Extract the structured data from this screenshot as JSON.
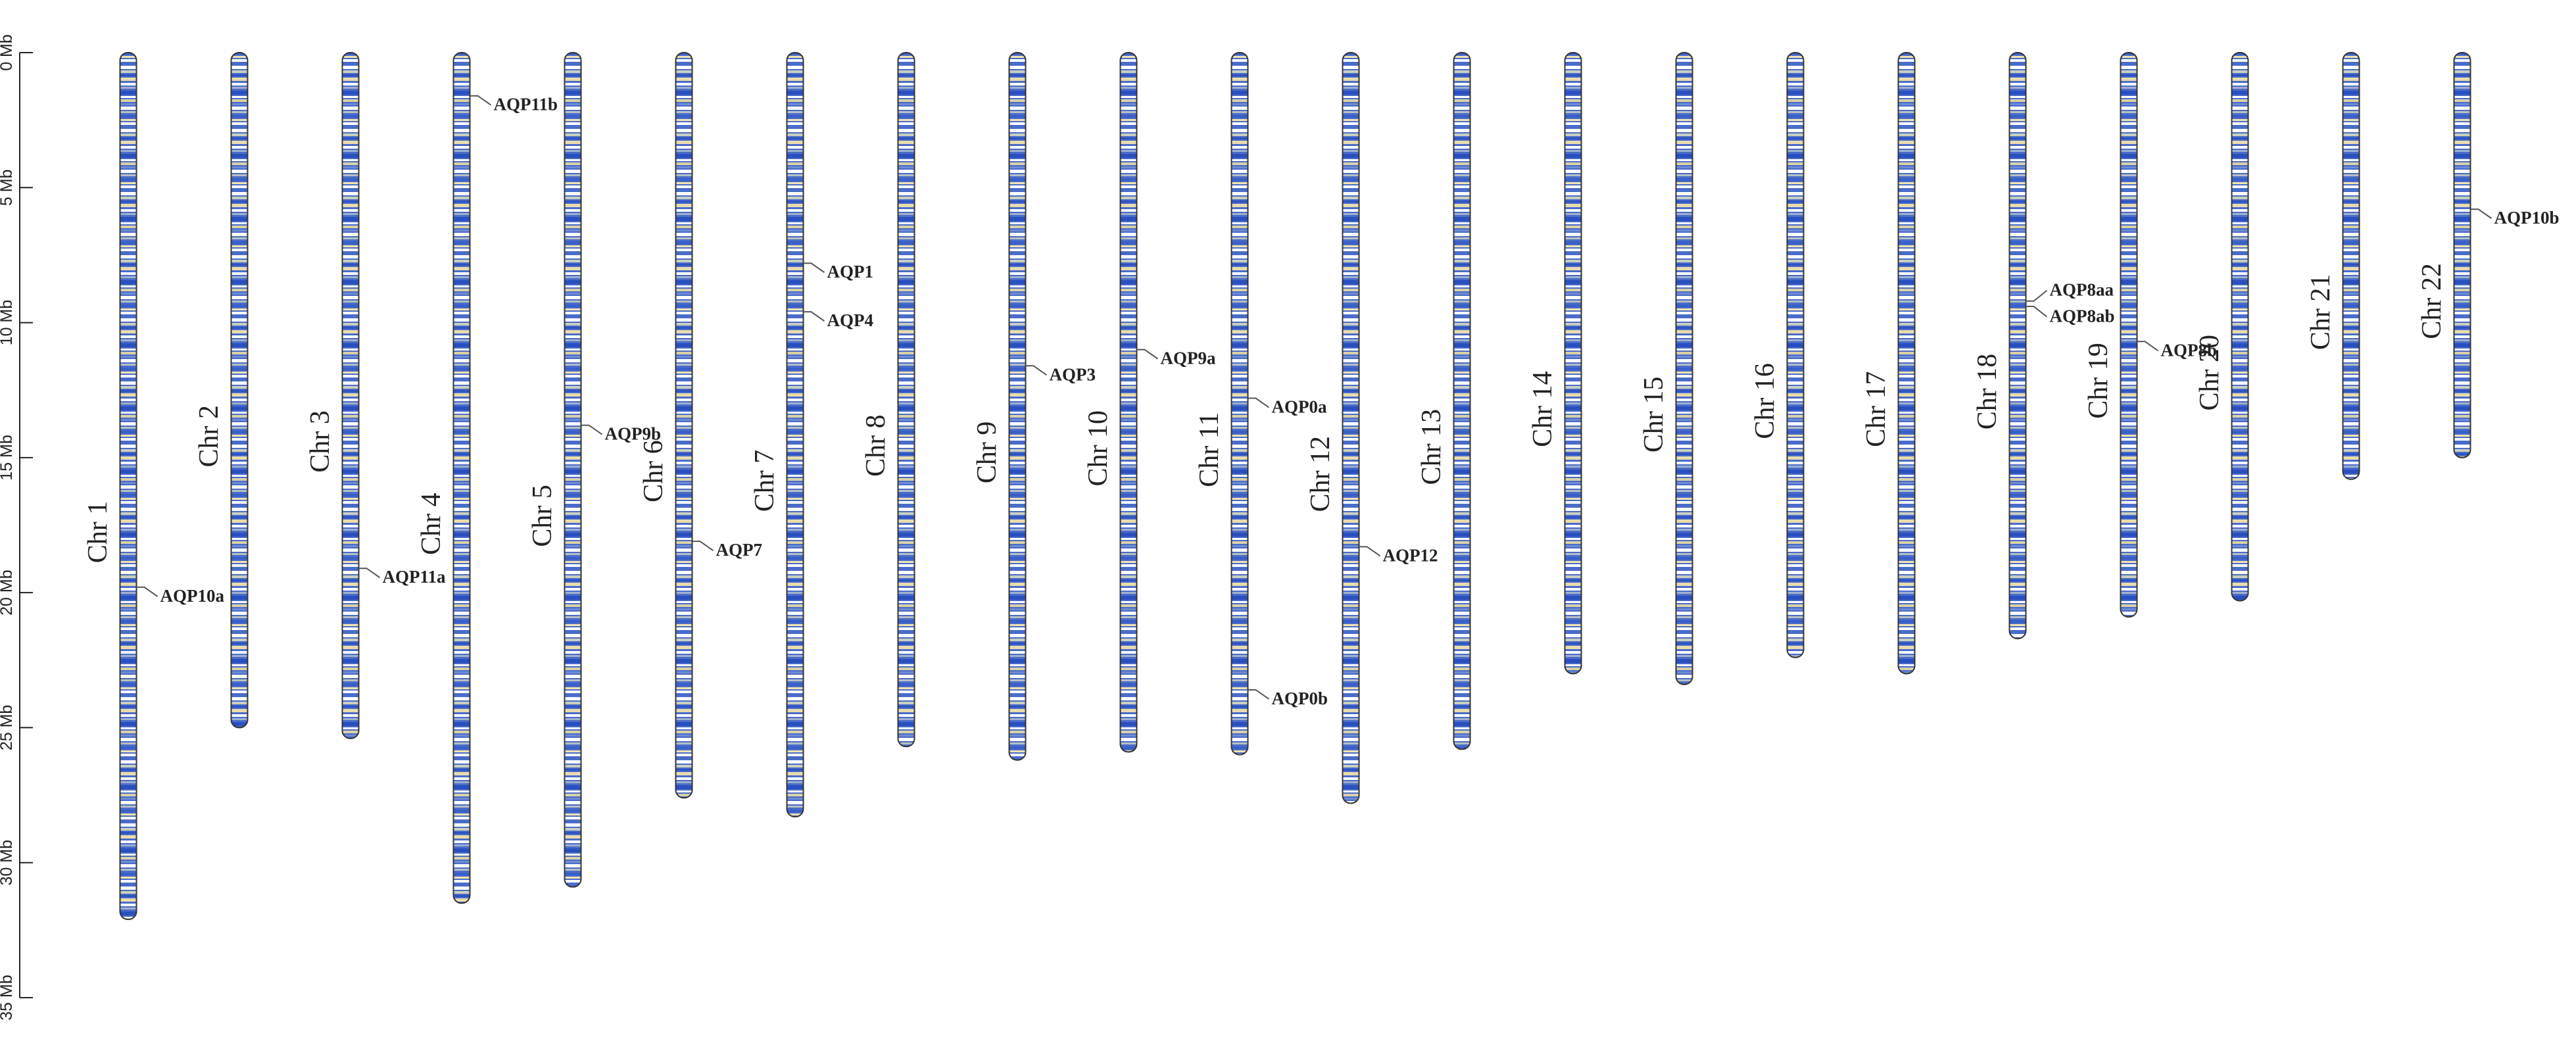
{
  "chart_data": {
    "type": "ideogram",
    "ylim": [
      0,
      35
    ],
    "yticks": [
      {
        "value": 0,
        "label": "0 Mb"
      },
      {
        "value": 5,
        "label": "5 Mb"
      },
      {
        "value": 10,
        "label": "10 Mb"
      },
      {
        "value": 15,
        "label": "15 Mb"
      },
      {
        "value": 20,
        "label": "20 Mb"
      },
      {
        "value": 25,
        "label": "25 Mb"
      },
      {
        "value": 30,
        "label": "30 Mb"
      },
      {
        "value": 35,
        "label": "35 Mb"
      }
    ],
    "chromosomes": [
      {
        "name": "Chr 1",
        "length": 32.1,
        "genes": [
          {
            "name": "AQP10a",
            "position": 19.8
          }
        ]
      },
      {
        "name": "Chr 2",
        "length": 25.0,
        "genes": []
      },
      {
        "name": "Chr 3",
        "length": 25.4,
        "genes": [
          {
            "name": "AQP11a",
            "position": 19.1
          }
        ]
      },
      {
        "name": "Chr 4",
        "length": 31.5,
        "genes": [
          {
            "name": "AQP11b",
            "position": 1.6
          }
        ]
      },
      {
        "name": "Chr 5",
        "length": 30.9,
        "genes": [
          {
            "name": "AQP9b",
            "position": 13.8
          }
        ]
      },
      {
        "name": "Chr 6",
        "length": 27.6,
        "genes": [
          {
            "name": "AQP7",
            "position": 18.1
          }
        ]
      },
      {
        "name": "Chr 7",
        "length": 28.3,
        "genes": [
          {
            "name": "AQP1",
            "position": 7.8
          },
          {
            "name": "AQP4",
            "position": 9.6
          }
        ]
      },
      {
        "name": "Chr 8",
        "length": 25.7,
        "genes": []
      },
      {
        "name": "Chr 9",
        "length": 26.2,
        "genes": [
          {
            "name": "AQP3",
            "position": 11.6
          }
        ]
      },
      {
        "name": "Chr 10",
        "length": 25.9,
        "genes": [
          {
            "name": "AQP9a",
            "position": 11.0
          }
        ]
      },
      {
        "name": "Chr 11",
        "length": 26.0,
        "genes": [
          {
            "name": "AQP0a",
            "position": 12.8
          },
          {
            "name": "AQP0b",
            "position": 23.6
          }
        ]
      },
      {
        "name": "Chr 12",
        "length": 27.8,
        "genes": [
          {
            "name": "AQP12",
            "position": 18.3
          }
        ]
      },
      {
        "name": "Chr 13",
        "length": 25.8,
        "genes": []
      },
      {
        "name": "Chr 14",
        "length": 23.0,
        "genes": []
      },
      {
        "name": "Chr 15",
        "length": 23.4,
        "genes": []
      },
      {
        "name": "Chr 16",
        "length": 22.4,
        "genes": []
      },
      {
        "name": "Chr 17",
        "length": 23.0,
        "genes": []
      },
      {
        "name": "Chr 18",
        "length": 21.7,
        "genes": [
          {
            "name": "AQP8aa",
            "position": 9.2
          },
          {
            "name": "AQP8ab",
            "position": 9.4
          }
        ]
      },
      {
        "name": "Chr 19",
        "length": 20.9,
        "genes": [
          {
            "name": "AQP8b",
            "position": 10.7
          }
        ]
      },
      {
        "name": "Chr 20",
        "length": 20.3,
        "genes": []
      },
      {
        "name": "Chr 21",
        "length": 15.8,
        "genes": []
      },
      {
        "name": "Chr 22",
        "length": 15.0,
        "genes": [
          {
            "name": "AQP10b",
            "position": 5.8
          }
        ]
      }
    ]
  }
}
